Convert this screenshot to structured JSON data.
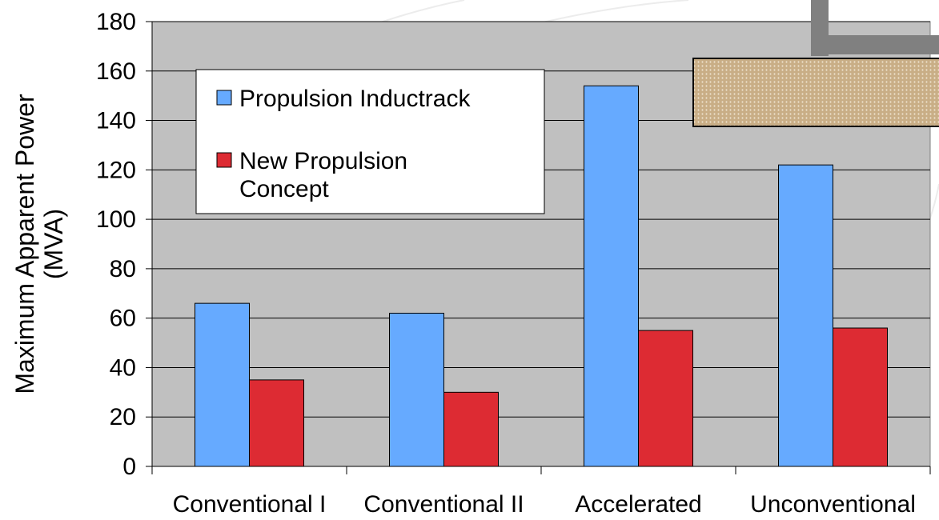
{
  "chart_data": {
    "type": "bar",
    "title": "",
    "xlabel": "",
    "ylabel_lines": [
      "Maximum Apparent Power",
      "(MVA)"
    ],
    "ylim": [
      0,
      180
    ],
    "yticks": [
      0,
      20,
      40,
      60,
      80,
      100,
      120,
      140,
      160,
      180
    ],
    "ytick_labels": [
      "0",
      "20",
      "40",
      "60",
      "80",
      "100",
      "120",
      "140",
      "160",
      "180"
    ],
    "categories": [
      "Conventional I",
      "Conventional II",
      "Accelerated",
      "Unconventional"
    ],
    "series": [
      {
        "name_lines": [
          "Propulsion Inductrack"
        ],
        "color": "#66aaff",
        "values": [
          66,
          62,
          154,
          122
        ]
      },
      {
        "name_lines": [
          "New Propulsion",
          "Concept"
        ],
        "color": "#dd2b33",
        "values": [
          35,
          30,
          55,
          56
        ]
      }
    ],
    "grid": true,
    "legend_position": "top-left",
    "plot_background": "#c0c0c0"
  }
}
